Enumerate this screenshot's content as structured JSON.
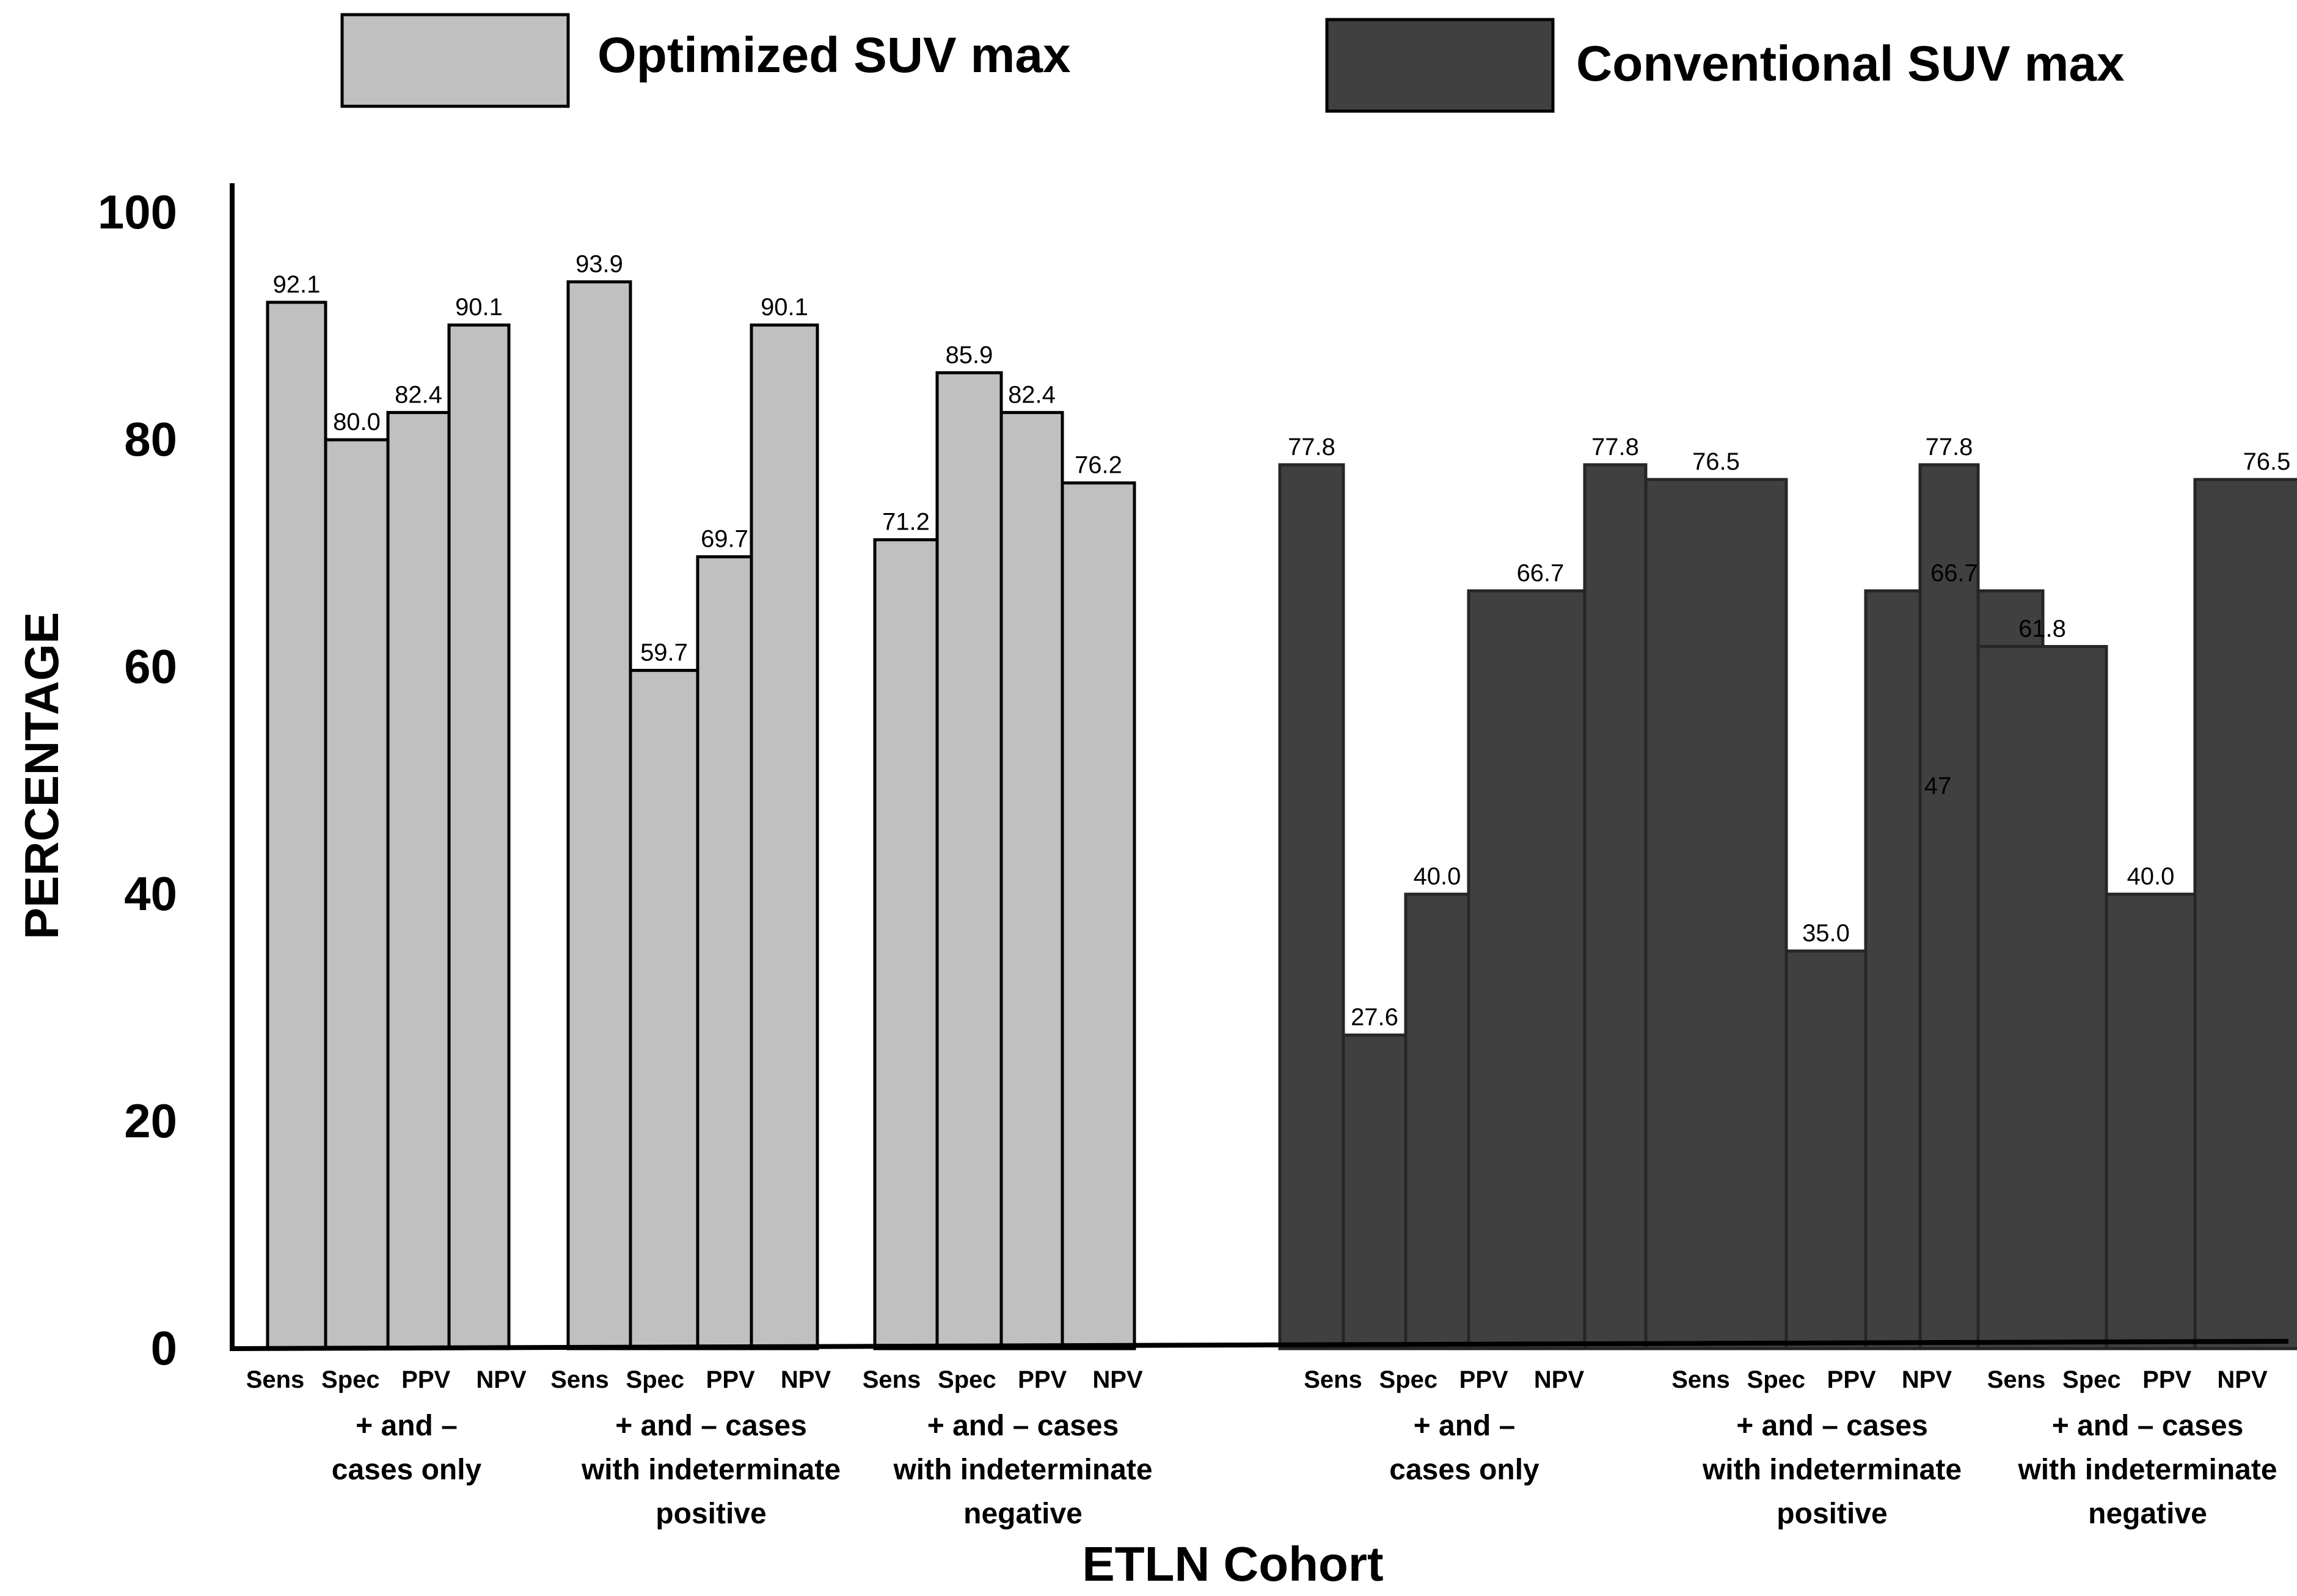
{
  "chart_data": {
    "type": "bar",
    "ylabel": "PERCENTAGE",
    "xlabel": "ETLN Cohort",
    "ylim": [
      0,
      100
    ],
    "yticks": [
      "0",
      "20",
      "40",
      "60",
      "80",
      "100"
    ],
    "legend": [
      {
        "label": "Optimized SUV max",
        "color": "#c0c0c0"
      },
      {
        "label": "Conventional SUV max",
        "color": "#404040"
      }
    ],
    "metrics": [
      "Sens",
      "Spec",
      "PPV",
      "NPV"
    ],
    "groups": [
      {
        "series": "Optimized SUV max",
        "label": [
          "+ and –",
          "cases only"
        ],
        "values": [
          92.1,
          80.0,
          82.4,
          90.1
        ],
        "value_labels": [
          "92.1",
          "80.0",
          "82.4",
          "90.1"
        ]
      },
      {
        "series": "Optimized SUV max",
        "label": [
          "+ and – cases",
          "with indeterminate",
          "positive"
        ],
        "values": [
          93.9,
          59.7,
          69.7,
          90.1
        ],
        "value_labels": [
          "93.9",
          "59.7",
          "69.7",
          "90.1"
        ]
      },
      {
        "series": "Optimized SUV max",
        "label": [
          "+ and – cases",
          "with indeterminate",
          "negative"
        ],
        "values": [
          71.2,
          85.9,
          82.4,
          76.2
        ],
        "value_labels": [
          "71.2",
          "85.9",
          "82.4",
          "76.2"
        ]
      },
      {
        "series": "Conventional SUV max",
        "label": [
          "+ and –",
          "cases only"
        ],
        "values": [
          77.8,
          27.6,
          40.0,
          66.7
        ],
        "value_labels": [
          "77.8",
          "27.6",
          "40.0",
          "66.7"
        ]
      },
      {
        "series": "Conventional SUV max",
        "label": [
          "+ and – cases",
          "with indeterminate",
          "positive"
        ],
        "values": [
          77.8,
          76.5,
          35.0,
          66.7
        ],
        "value_labels": [
          "77.8",
          "76.5",
          "35.0",
          "66.7"
        ]
      },
      {
        "series": "Conventional SUV max",
        "label": [
          "+ and – cases",
          "with indeterminate",
          "negative"
        ],
        "values": [
          77.8,
          61.8,
          40.0,
          76.5
        ],
        "value_labels": [
          "77.8",
          "61.8",
          "40.0",
          "76.5"
        ]
      }
    ],
    "annotations": [
      "47"
    ],
    "grid": false
  }
}
